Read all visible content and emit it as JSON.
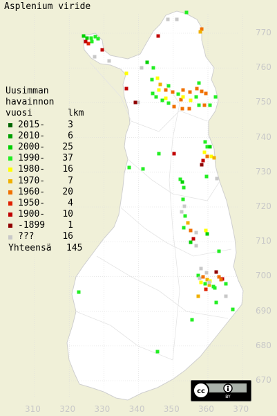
{
  "title": "Asplenium viride",
  "legend": {
    "header": [
      "Uusimman",
      "havainnon",
      "vuosi"
    ],
    "count_header": "lkm",
    "items": [
      {
        "label": "2015-",
        "count": "3",
        "color": "#006400"
      },
      {
        "label": "2010-",
        "count": "6",
        "color": "#00a000"
      },
      {
        "label": "2000-",
        "count": "25",
        "color": "#00d000"
      },
      {
        "label": "1990-",
        "count": "37",
        "color": "#22ee22"
      },
      {
        "label": "1980-",
        "count": "16",
        "color": "#ffff00"
      },
      {
        "label": "1970-",
        "count": "7",
        "color": "#f0b000"
      },
      {
        "label": "1960-",
        "count": "20",
        "color": "#f07000"
      },
      {
        "label": "1950-",
        "count": "4",
        "color": "#e02000"
      },
      {
        "label": "1900-",
        "count": "10",
        "color": "#c00000"
      },
      {
        "label": "-1899",
        "count": "1",
        "color": "#900000"
      },
      {
        "label": "???",
        "count": "16",
        "color": "#c8c8c8"
      }
    ],
    "total_label": "Yhteensä",
    "total_count": "145"
  },
  "y_labels": [
    "770",
    "760",
    "750",
    "740",
    "730",
    "720",
    "710",
    "700",
    "690",
    "680",
    "670"
  ],
  "x_labels": [
    "310",
    "320",
    "330",
    "340",
    "350",
    "360",
    "370"
  ],
  "license": {
    "cc": "cc",
    "by": "BY"
  },
  "colors": {
    "background": "#f0f0d8",
    "land": "#ffffff",
    "grid": "#c8c8c8"
  }
}
